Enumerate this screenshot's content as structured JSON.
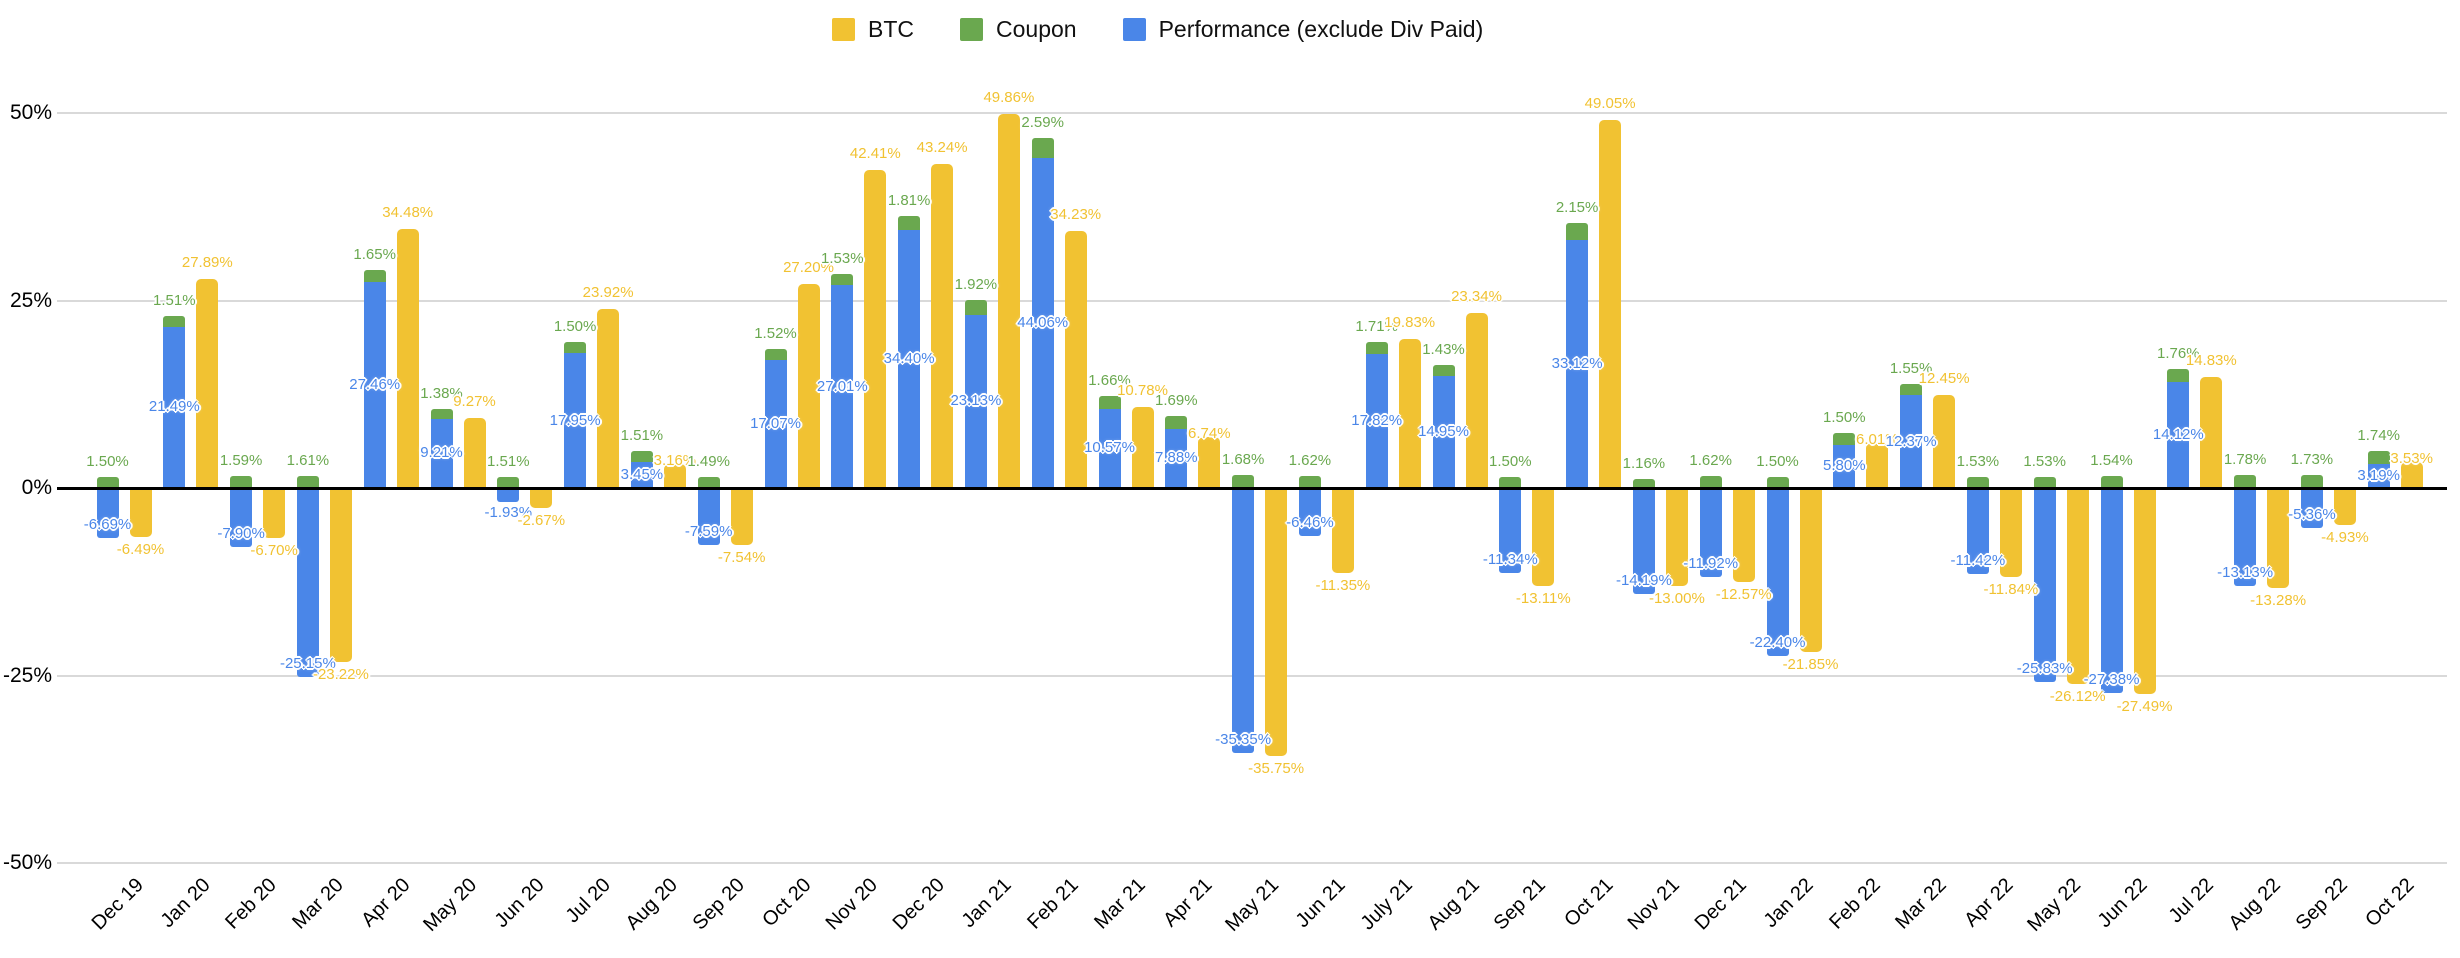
{
  "chart_data": {
    "type": "bar",
    "title": "",
    "stacking": "Coupon stacked on top of Performance; BTC is a separate column per month",
    "legend_position": "top",
    "grid": true,
    "ylim": [
      -50,
      50
    ],
    "y_ticks": [
      {
        "label": "50%",
        "value": 50
      },
      {
        "label": "25%",
        "value": 25
      },
      {
        "label": "0%",
        "value": 0
      },
      {
        "label": "-25%",
        "value": -25
      },
      {
        "label": "-50%",
        "value": -50
      }
    ],
    "value_label_format": "0.00%",
    "categories": [
      "Dec 19",
      "Jan 20",
      "Feb 20",
      "Mar 20",
      "Apr 20",
      "May 20",
      "Jun 20",
      "Jul 20",
      "Aug 20",
      "Sep 20",
      "Oct 20",
      "Nov 20",
      "Dec 20",
      "Jan 21",
      "Feb 21",
      "Mar 21",
      "Apr 21",
      "May 21",
      "Jun 21",
      "July 21",
      "Aug 21",
      "Sep 21",
      "Oct 21",
      "Nov 21",
      "Dec 21",
      "Jan 22",
      "Feb 22",
      "Mar 22",
      "Apr 22",
      "May 22",
      "Jun 22",
      "Jul 22",
      "Aug 22",
      "Sep 22",
      "Oct 22"
    ],
    "series": [
      {
        "name": "BTC",
        "color": "#F1C232",
        "values": [
          -6.49,
          27.89,
          -6.7,
          -23.22,
          34.48,
          9.27,
          -2.67,
          23.92,
          3.16,
          -7.54,
          27.2,
          42.41,
          43.24,
          49.86,
          34.23,
          10.78,
          6.74,
          -35.75,
          -11.35,
          19.83,
          23.34,
          -13.11,
          49.05,
          -13.0,
          -12.57,
          -21.85,
          6.01,
          12.45,
          -11.84,
          -26.12,
          -27.49,
          14.83,
          -13.28,
          -4.93,
          3.53
        ]
      },
      {
        "name": "Coupon",
        "color": "#6AA84F",
        "values": [
          1.5,
          1.51,
          1.59,
          1.61,
          1.65,
          1.38,
          1.51,
          1.5,
          1.51,
          1.49,
          1.52,
          1.53,
          1.81,
          1.92,
          2.59,
          1.66,
          1.69,
          1.68,
          1.62,
          1.71,
          1.43,
          1.5,
          2.15,
          1.16,
          1.62,
          1.5,
          1.5,
          1.55,
          1.53,
          1.53,
          1.54,
          1.76,
          1.78,
          1.73,
          1.74
        ]
      },
      {
        "name": "Performance (exclude Div Paid)",
        "color": "#4A86E8",
        "values": [
          -6.69,
          21.49,
          -7.9,
          -25.15,
          27.46,
          9.21,
          -1.93,
          17.95,
          3.45,
          -7.59,
          17.07,
          27.01,
          34.4,
          23.13,
          44.06,
          10.57,
          7.88,
          -35.35,
          -6.46,
          17.82,
          14.95,
          -11.34,
          33.12,
          -14.19,
          -11.92,
          -22.4,
          5.8,
          12.37,
          -11.42,
          -25.83,
          -27.38,
          14.12,
          -13.13,
          -5.36,
          3.19
        ]
      }
    ]
  }
}
